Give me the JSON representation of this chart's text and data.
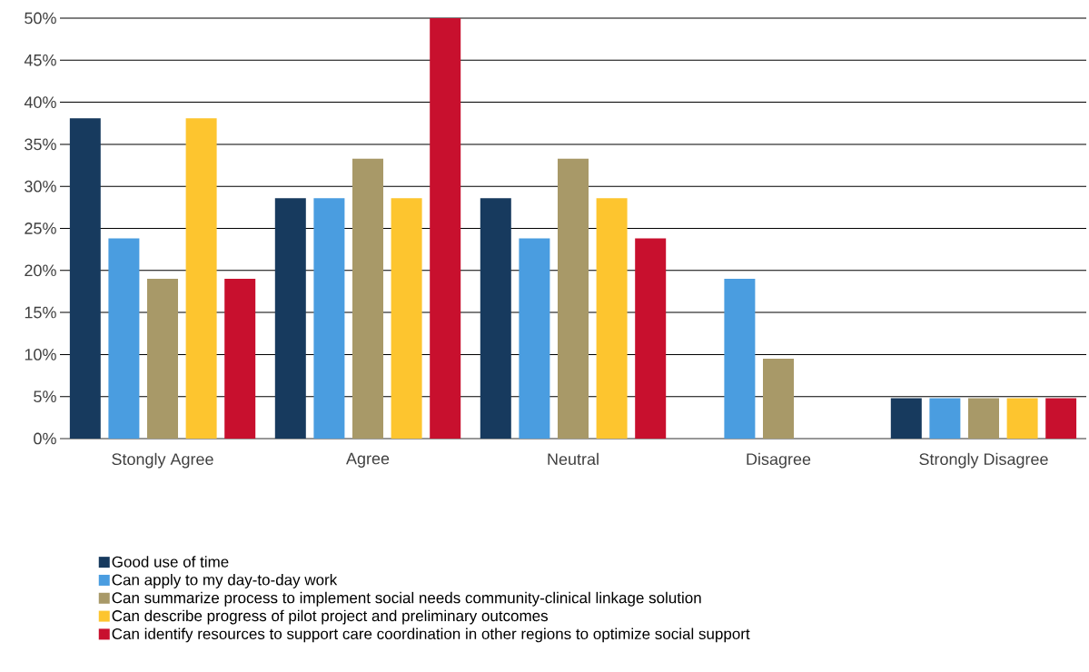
{
  "chart_data": {
    "type": "bar",
    "categories": [
      "Stongly Agree",
      "Agree",
      "Neutral",
      "Disagree",
      "Strongly Disagree"
    ],
    "series": [
      {
        "name": "Good use of time",
        "color": "#173a5e",
        "values": [
          38.1,
          28.6,
          28.6,
          0,
          4.8
        ]
      },
      {
        "name": "Can apply to my day-to-day work",
        "color": "#4a9de0",
        "values": [
          23.8,
          28.6,
          23.8,
          19.0,
          4.8
        ]
      },
      {
        "name": "Can summarize process to implement social needs community-clinical linkage solution",
        "color": "#a89968",
        "values": [
          19.0,
          33.3,
          33.3,
          9.5,
          4.8
        ]
      },
      {
        "name": "Can describe progress of pilot project and preliminary outcomes",
        "color": "#fdc52f",
        "values": [
          38.1,
          28.6,
          28.6,
          0,
          4.8
        ]
      },
      {
        "name": "Can identify resources to support care coordination in other regions to optimize social support",
        "color": "#c8102e",
        "values": [
          19.0,
          50,
          23.8,
          0,
          4.8
        ]
      }
    ],
    "ylim": [
      0,
      50
    ],
    "yticks": [
      {
        "value": 0,
        "label": "0%"
      },
      {
        "value": 5,
        "label": "5%"
      },
      {
        "value": 10,
        "label": "10%"
      },
      {
        "value": 15,
        "label": "15%"
      },
      {
        "value": 20,
        "label": "20%"
      },
      {
        "value": 25,
        "label": "25%"
      },
      {
        "value": 30,
        "label": "30%"
      },
      {
        "value": 35,
        "label": "35%"
      },
      {
        "value": 40,
        "label": "40%"
      },
      {
        "value": 45,
        "label": "45%"
      },
      {
        "value": 50,
        "label": "50%"
      }
    ],
    "grid": "y",
    "legend": "bottom"
  }
}
